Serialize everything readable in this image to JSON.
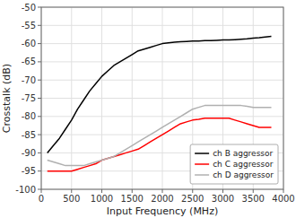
{
  "chart_data": {
    "type": "line",
    "xlabel": "Input Frequency (MHz)",
    "ylabel": "Crosstalk (dB)",
    "x": [
      100,
      200,
      300,
      400,
      500,
      600,
      700,
      800,
      900,
      1000,
      1100,
      1200,
      1300,
      1400,
      1500,
      1600,
      1700,
      1800,
      1900,
      2000,
      2100,
      2200,
      2300,
      2400,
      2500,
      2600,
      2700,
      2800,
      2900,
      3000,
      3100,
      3200,
      3300,
      3400,
      3500,
      3600,
      3700,
      3800
    ],
    "series": [
      {
        "name": "ch B aggressor",
        "color": "#000000",
        "values": [
          -90,
          -88,
          -86,
          -83.5,
          -81,
          -78,
          -75.5,
          -73,
          -71,
          -69,
          -67.5,
          -66,
          -65,
          -64,
          -63,
          -62,
          -61.5,
          -61,
          -60.5,
          -60,
          -59.8,
          -59.6,
          -59.5,
          -59.4,
          -59.3,
          -59.3,
          -59.2,
          -59.2,
          -59.1,
          -59,
          -59,
          -58.9,
          -58.8,
          -58.7,
          -58.5,
          -58.4,
          -58.2,
          -58
        ]
      },
      {
        "name": "ch C aggressor",
        "color": "#ff0000",
        "values": [
          -95,
          -95,
          -95,
          -95,
          -95,
          -94.5,
          -94,
          -93.5,
          -93,
          -92,
          -91.5,
          -91,
          -90.5,
          -90,
          -89.5,
          -89,
          -88,
          -87,
          -86,
          -85,
          -84,
          -83,
          -82,
          -81.5,
          -81,
          -80.8,
          -80.5,
          -80.5,
          -80.5,
          -80.5,
          -80.5,
          -81,
          -81.5,
          -82,
          -82.5,
          -83,
          -83,
          -83
        ]
      },
      {
        "name": "ch D aggressor",
        "color": "#b0b0b0",
        "values": [
          -92,
          -92.5,
          -93,
          -93.5,
          -93.5,
          -93.5,
          -93.5,
          -93,
          -92.5,
          -92,
          -91.5,
          -91,
          -90,
          -89,
          -88,
          -87,
          -86,
          -85,
          -84,
          -83,
          -82,
          -81,
          -80,
          -79,
          -78,
          -77.5,
          -77,
          -77,
          -77,
          -77,
          -77,
          -77,
          -77,
          -77.2,
          -77.5,
          -77.5,
          -77.5,
          -77.5
        ]
      }
    ],
    "xlim": [
      0,
      4000
    ],
    "ylim": [
      -100,
      -50
    ],
    "xticks": [
      0,
      500,
      1000,
      1500,
      2000,
      2500,
      3000,
      3500,
      4000
    ],
    "yticks": [
      -100,
      -95,
      -90,
      -85,
      -80,
      -75,
      -70,
      -65,
      -60,
      -55,
      -50
    ],
    "grid": true,
    "legend": "lower right"
  }
}
